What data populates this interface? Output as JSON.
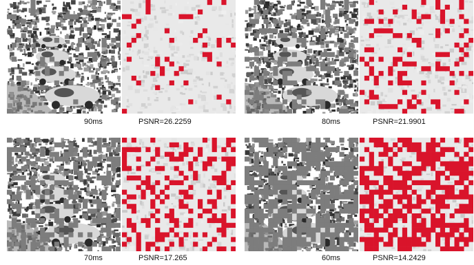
{
  "figure": {
    "groups": [
      {
        "latency": "90ms",
        "psnr": "PSNR=26.2259",
        "loss_density": 0.08,
        "seed": 11
      },
      {
        "latency": "80ms",
        "psnr": "PSNR=21.9901",
        "loss_density": 0.16,
        "seed": 23
      },
      {
        "latency": "70ms",
        "psnr": "PSNR=17.265",
        "loss_density": 0.32,
        "seed": 37
      },
      {
        "latency": "60ms",
        "psnr": "PSNR=14.2429",
        "loss_density": 0.55,
        "seed": 51
      }
    ],
    "colors": {
      "loss_block": "#d9142b",
      "map_background": "#e9e9e9",
      "missing_block": "#7d7d7d"
    }
  }
}
